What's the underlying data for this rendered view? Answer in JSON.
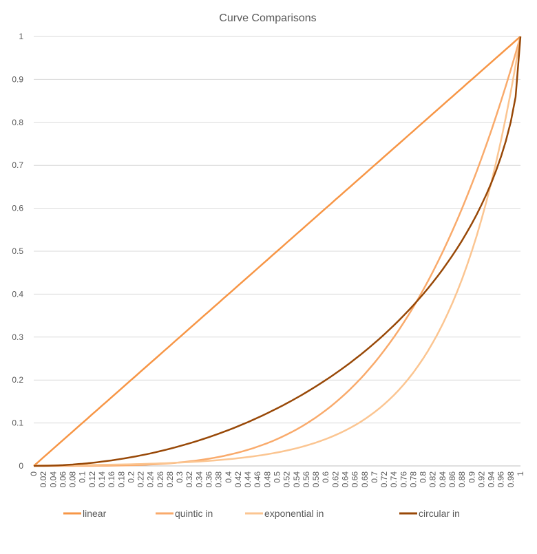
{
  "chart_data": {
    "type": "line",
    "title": "Curve Comparisons",
    "xlabel": "",
    "ylabel": "",
    "ylim": [
      0,
      1
    ],
    "y_ticks": [
      "0",
      "0.1",
      "0.2",
      "0.3",
      "0.4",
      "0.5",
      "0.6",
      "0.7",
      "0.8",
      "0.9",
      "1"
    ],
    "x_tick_labels": [
      "0",
      "0.02",
      "0.04",
      "0.06",
      "0.08",
      "0.1",
      "0.12",
      "0.14",
      "0.16",
      "0.18",
      "0.2",
      "0.22",
      "0.24",
      "0.26",
      "0.28",
      "0.3",
      "0.32",
      "0.34",
      "0.36",
      "0.38",
      "0.4",
      "0.42",
      "0.44",
      "0.46",
      "0.48",
      "0.5",
      "0.52",
      "0.54",
      "0.56",
      "0.58",
      "0.6",
      "0.62",
      "0.64",
      "0.66",
      "0.68",
      "0.7",
      "0.72",
      "0.74",
      "0.76",
      "0.78",
      "0.8",
      "0.82",
      "0.84",
      "0.86",
      "0.88",
      "0.9",
      "0.92",
      "0.94",
      "0.96",
      "0.98",
      "1"
    ],
    "grid": true,
    "legend": "bottom",
    "x": [
      0,
      0.01,
      0.02,
      0.03,
      0.04,
      0.05,
      0.06,
      0.07,
      0.08,
      0.09,
      0.1,
      0.11,
      0.12,
      0.13,
      0.14,
      0.15,
      0.16,
      0.17,
      0.18,
      0.19,
      0.2,
      0.21,
      0.22,
      0.23,
      0.24,
      0.25,
      0.26,
      0.27,
      0.28,
      0.29,
      0.3,
      0.31,
      0.32,
      0.33,
      0.34,
      0.35,
      0.36,
      0.37,
      0.38,
      0.39,
      0.4,
      0.41,
      0.42,
      0.43,
      0.44,
      0.45,
      0.46,
      0.47,
      0.48,
      0.49,
      0.5,
      0.51,
      0.52,
      0.53,
      0.54,
      0.55,
      0.56,
      0.57,
      0.58,
      0.59,
      0.6,
      0.61,
      0.62,
      0.63,
      0.64,
      0.65,
      0.66,
      0.67,
      0.68,
      0.69,
      0.7,
      0.71,
      0.72,
      0.73,
      0.74,
      0.75,
      0.76,
      0.77,
      0.78,
      0.79,
      0.8,
      0.81,
      0.82,
      0.83,
      0.84,
      0.85,
      0.86,
      0.87,
      0.88,
      0.89,
      0.9,
      0.91,
      0.92,
      0.93,
      0.94,
      0.95,
      0.96,
      0.97,
      0.98,
      0.99,
      1
    ],
    "series": [
      {
        "name": "linear",
        "color": "#F79646",
        "values": [
          0,
          0.01,
          0.02,
          0.03,
          0.04,
          0.05,
          0.06,
          0.07,
          0.08,
          0.09,
          0.1,
          0.11,
          0.12,
          0.13,
          0.14,
          0.15,
          0.16,
          0.17,
          0.18,
          0.19,
          0.2,
          0.21,
          0.22,
          0.23,
          0.24,
          0.25,
          0.26,
          0.27,
          0.28,
          0.29,
          0.3,
          0.31,
          0.32,
          0.33,
          0.34,
          0.35,
          0.36,
          0.37,
          0.38,
          0.39,
          0.4,
          0.41,
          0.42,
          0.43,
          0.44,
          0.45,
          0.46,
          0.47,
          0.48,
          0.49,
          0.5,
          0.51,
          0.52,
          0.53,
          0.54,
          0.55,
          0.56,
          0.57,
          0.58,
          0.59,
          0.6,
          0.61,
          0.62,
          0.63,
          0.64,
          0.65,
          0.66,
          0.67,
          0.68,
          0.69,
          0.7,
          0.71,
          0.72,
          0.73,
          0.74,
          0.75,
          0.76,
          0.77,
          0.78,
          0.79,
          0.8,
          0.81,
          0.82,
          0.83,
          0.84,
          0.85,
          0.86,
          0.87,
          0.88,
          0.89,
          0.9,
          0.91,
          0.92,
          0.93,
          0.94,
          0.95,
          0.96,
          0.97,
          0.98,
          0.99,
          1
        ]
      },
      {
        "name": "quintic in",
        "color": "#F9AA6B",
        "values": [
          0,
          0,
          0,
          0,
          0,
          0,
          0,
          0,
          0,
          0.0001,
          0.0001,
          0.0001,
          0.0002,
          0.0003,
          0.0004,
          0.0005,
          0.0007,
          0.0008,
          0.001,
          0.0013,
          0.0016,
          0.0019,
          0.0023,
          0.0028,
          0.0033,
          0.0039,
          0.0046,
          0.0053,
          0.0061,
          0.0071,
          0.0081,
          0.0092,
          0.0105,
          0.0119,
          0.0134,
          0.015,
          0.0168,
          0.0187,
          0.0209,
          0.0231,
          0.0256,
          0.0283,
          0.0311,
          0.0342,
          0.0375,
          0.041,
          0.0448,
          0.0488,
          0.0531,
          0.0576,
          0.0625,
          0.0677,
          0.0731,
          0.0789,
          0.085,
          0.0915,
          0.0983,
          0.1056,
          0.1132,
          0.1212,
          0.1296,
          0.1385,
          0.1478,
          0.1575,
          0.1678,
          0.1785,
          0.1897,
          0.2015,
          0.2138,
          0.2267,
          0.2401,
          0.2541,
          0.2687,
          0.284,
          0.2999,
          0.3164,
          0.3336,
          0.3515,
          0.3702,
          0.3895,
          0.4096,
          0.4305,
          0.4521,
          0.4746,
          0.4979,
          0.522,
          0.547,
          0.5729,
          0.5997,
          0.6274,
          0.6561,
          0.6857,
          0.7164,
          0.7481,
          0.7807,
          0.8145,
          0.8493,
          0.8853,
          0.9224,
          0.9606,
          1
        ]
      },
      {
        "name": "exponential in",
        "color": "#FBC591",
        "values": [
          0.001,
          0.001,
          0.0011,
          0.0012,
          0.0013,
          0.0014,
          0.0015,
          0.0016,
          0.0017,
          0.0018,
          0.002,
          0.0021,
          0.0022,
          0.0024,
          0.0026,
          0.0028,
          0.003,
          0.0032,
          0.0034,
          0.0036,
          0.0039,
          0.0042,
          0.0045,
          0.0048,
          0.0052,
          0.0055,
          0.0059,
          0.0063,
          0.0068,
          0.0073,
          0.0078,
          0.0084,
          0.009,
          0.0096,
          0.0103,
          0.011,
          0.0118,
          0.0127,
          0.0136,
          0.0146,
          0.0156,
          0.0167,
          0.0179,
          0.0192,
          0.0206,
          0.0221,
          0.0237,
          0.0254,
          0.0272,
          0.0292,
          0.0313,
          0.0335,
          0.0359,
          0.0385,
          0.0412,
          0.0442,
          0.0474,
          0.0508,
          0.0544,
          0.0583,
          0.0625,
          0.067,
          0.0718,
          0.0769,
          0.0825,
          0.0884,
          0.0947,
          0.1015,
          0.1088,
          0.1166,
          0.125,
          0.134,
          0.1436,
          0.1539,
          0.1649,
          0.1768,
          0.1895,
          0.2031,
          0.2176,
          0.2333,
          0.25,
          0.2679,
          0.2872,
          0.3078,
          0.3299,
          0.3536,
          0.3789,
          0.4061,
          0.4353,
          0.4665,
          0.5,
          0.5359,
          0.5743,
          0.6156,
          0.6598,
          0.7071,
          0.7579,
          0.8123,
          0.8706,
          0.933,
          1
        ]
      },
      {
        "name": "circular in",
        "color": "#984807",
        "values": [
          0,
          0.0001,
          0.0002,
          0.0005,
          0.0008,
          0.0013,
          0.0018,
          0.0025,
          0.0032,
          0.0041,
          0.005,
          0.0061,
          0.0072,
          0.0085,
          0.0099,
          0.0113,
          0.0129,
          0.0146,
          0.0163,
          0.0182,
          0.0202,
          0.0223,
          0.0245,
          0.0268,
          0.0292,
          0.0318,
          0.0344,
          0.0371,
          0.04,
          0.043,
          0.0461,
          0.0493,
          0.0526,
          0.056,
          0.0596,
          0.0633,
          0.067,
          0.071,
          0.075,
          0.0792,
          0.0835,
          0.0879,
          0.0925,
          0.0972,
          0.102,
          0.107,
          0.1121,
          0.1173,
          0.1227,
          0.1283,
          0.134,
          0.1398,
          0.1458,
          0.152,
          0.1583,
          0.1648,
          0.1715,
          0.1784,
          0.1854,
          0.1926,
          0.2,
          0.2076,
          0.2154,
          0.2234,
          0.2316,
          0.2401,
          0.2487,
          0.2576,
          0.2668,
          0.2762,
          0.2859,
          0.2958,
          0.306,
          0.3166,
          0.3274,
          0.3386,
          0.3501,
          0.362,
          0.3742,
          0.3869,
          0.4,
          0.4136,
          0.4276,
          0.4422,
          0.4574,
          0.4732,
          0.4897,
          0.5069,
          0.525,
          0.544,
          0.5641,
          0.5854,
          0.6081,
          0.6324,
          0.6588,
          0.6878,
          0.72,
          0.7569,
          0.801,
          0.8589,
          1
        ]
      }
    ]
  }
}
